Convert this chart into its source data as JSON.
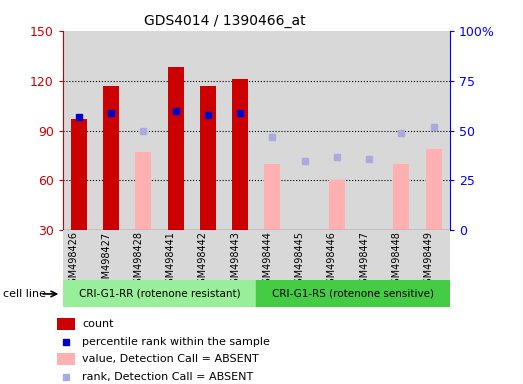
{
  "title": "GDS4014 / 1390466_at",
  "samples": [
    "GSM498426",
    "GSM498427",
    "GSM498428",
    "GSM498441",
    "GSM498442",
    "GSM498443",
    "GSM498444",
    "GSM498445",
    "GSM498446",
    "GSM498447",
    "GSM498448",
    "GSM498449"
  ],
  "group1_label": "CRI-G1-RR (rotenone resistant)",
  "group2_label": "CRI-G1-RS (rotenone sensitive)",
  "group1_count": 6,
  "group2_count": 6,
  "count_present": [
    97,
    117,
    null,
    128,
    117,
    121,
    null,
    null,
    null,
    null,
    null,
    null
  ],
  "rank_present": [
    57,
    59,
    null,
    60,
    58,
    59,
    null,
    null,
    null,
    null,
    null,
    null
  ],
  "count_absent": [
    null,
    null,
    77,
    null,
    null,
    null,
    70,
    null,
    60,
    30,
    70,
    79
  ],
  "rank_absent": [
    null,
    null,
    50,
    null,
    null,
    null,
    47,
    35,
    37,
    36,
    49,
    52
  ],
  "ylim_left": [
    30,
    150
  ],
  "ylim_right": [
    0,
    100
  ],
  "yticks_left": [
    30,
    60,
    90,
    120,
    150
  ],
  "yticks_right": [
    0,
    25,
    50,
    75,
    100
  ],
  "ytick_right_labels": [
    "0",
    "25",
    "50",
    "75",
    "100%"
  ],
  "bar_width": 0.5,
  "bar_color_present": "#cc0000",
  "bar_color_absent_value": "#ffb0b0",
  "dot_color_present": "#0000cc",
  "dot_color_absent": "#aaaadd",
  "col_bg": "#d8d8d8",
  "cell_line_bg1": "#99ee99",
  "cell_line_bg2": "#44cc44",
  "cell_line_label": "cell line",
  "legend_items": [
    "count",
    "percentile rank within the sample",
    "value, Detection Call = ABSENT",
    "rank, Detection Call = ABSENT"
  ],
  "legend_colors": [
    "#cc0000",
    "#0000cc",
    "#ffb0b0",
    "#aaaadd"
  ],
  "legend_marker_types": [
    "rect",
    "square",
    "rect",
    "square"
  ]
}
